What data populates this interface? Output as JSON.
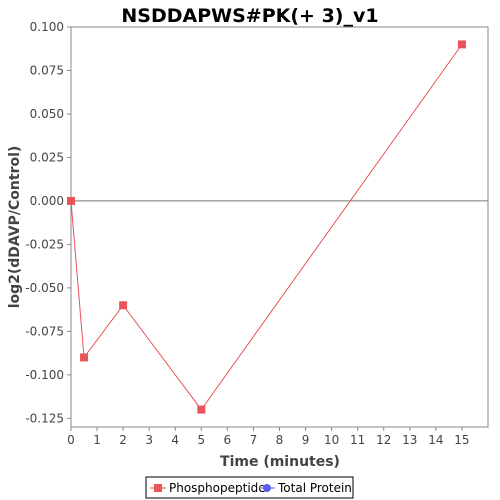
{
  "chart_data": {
    "type": "line",
    "title": "NSDDAPWS#PK(+ 3)_v1",
    "xlabel": "Time (minutes)",
    "ylabel": "log2(dDAVP/Control)",
    "xlim": [
      0,
      16
    ],
    "ylim": [
      -0.13,
      0.1
    ],
    "x_ticks": [
      0,
      1,
      2,
      3,
      4,
      5,
      6,
      7,
      8,
      9,
      10,
      11,
      12,
      13,
      14,
      15
    ],
    "x_tick_labels": [
      "0",
      "1",
      "2",
      "3",
      "4",
      "5",
      "6",
      "7",
      "8",
      "9",
      "10",
      "11",
      "12",
      "13",
      "14",
      "15"
    ],
    "y_ticks": [
      0.1,
      0.075,
      0.05,
      0.025,
      0.0,
      -0.025,
      -0.05,
      -0.075,
      -0.1,
      -0.125
    ],
    "y_tick_labels": [
      "0.100",
      "0.075",
      "0.050",
      "0.025",
      "0.000",
      "-0.025",
      "-0.050",
      "-0.075",
      "-0.100",
      "-0.125"
    ],
    "zero_line": true,
    "grid": false,
    "legend_position": "bottom-center",
    "series": [
      {
        "name": "Phosphopeptide",
        "color": "#e8545a",
        "marker": "square",
        "x": [
          0,
          0.5,
          2,
          5,
          15
        ],
        "y": [
          0.0,
          -0.09,
          -0.06,
          -0.12,
          0.09
        ]
      },
      {
        "name": "Total Protein",
        "color": "#5b5bf0",
        "marker": "circle",
        "x": [],
        "y": []
      }
    ]
  }
}
